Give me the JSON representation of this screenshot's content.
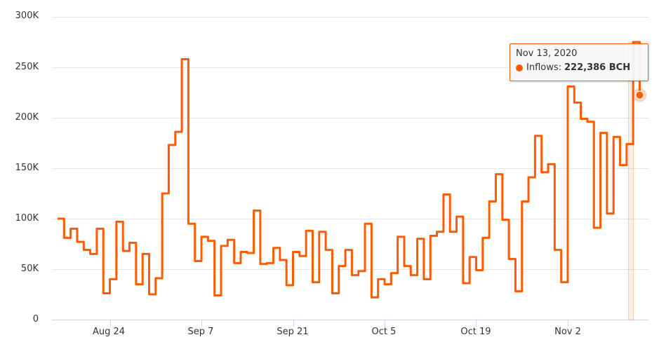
{
  "chart_data": {
    "type": "line",
    "step": true,
    "title": "",
    "xlabel": "",
    "ylabel": "",
    "ylim": [
      0,
      300000
    ],
    "y_ticks": [
      {
        "value": 0,
        "label": "0"
      },
      {
        "value": 50000,
        "label": "50K"
      },
      {
        "value": 100000,
        "label": "100K"
      },
      {
        "value": 150000,
        "label": "150K"
      },
      {
        "value": 200000,
        "label": "200K"
      },
      {
        "value": 250000,
        "label": "250K"
      },
      {
        "value": 300000,
        "label": "300K"
      }
    ],
    "x_ticks": [
      {
        "date": "2020-08-24",
        "label": "Aug 24"
      },
      {
        "date": "2020-09-07",
        "label": "Sep 7"
      },
      {
        "date": "2020-09-21",
        "label": "Sep 21"
      },
      {
        "date": "2020-10-05",
        "label": "Oct 5"
      },
      {
        "date": "2020-10-19",
        "label": "Oct 19"
      },
      {
        "date": "2020-11-02",
        "label": "Nov 2"
      }
    ],
    "grid": true,
    "legend": null,
    "x_start": "2020-08-16",
    "x_end": "2020-11-13",
    "series": [
      {
        "name": "Inflows",
        "color": "#ff5b00",
        "unit": "BCH",
        "values": [
          100000,
          81000,
          90000,
          77000,
          69000,
          65000,
          90000,
          26000,
          40000,
          97000,
          68000,
          76000,
          35000,
          65000,
          25000,
          41000,
          125000,
          173000,
          186000,
          258000,
          95000,
          58000,
          82000,
          78000,
          24000,
          73000,
          79000,
          56000,
          67000,
          66000,
          108000,
          55000,
          56000,
          71000,
          59000,
          34000,
          67000,
          63000,
          88000,
          37000,
          87000,
          69000,
          26000,
          53000,
          69000,
          44000,
          48000,
          95000,
          22000,
          40000,
          35000,
          46000,
          82000,
          53000,
          44000,
          80000,
          40000,
          83000,
          87000,
          124000,
          87000,
          102000,
          36000,
          62000,
          49000,
          81000,
          117000,
          144000,
          99000,
          60000,
          28000,
          117000,
          141000,
          182000,
          146000,
          154000,
          69000,
          37000,
          231000,
          215000,
          199000,
          196000,
          91000,
          185000,
          105000,
          181000,
          153000,
          174000,
          275000,
          222386
        ]
      }
    ],
    "tooltip": {
      "date": "Nov 13, 2020",
      "series": "Inflows",
      "value": 222386,
      "value_label": "222,386 BCH"
    }
  },
  "axis": {
    "y_labels": [
      "300K",
      "250K",
      "200K",
      "150K",
      "100K",
      "50K",
      "0"
    ],
    "x_labels": [
      "Aug 24",
      "Sep 7",
      "Sep 21",
      "Oct 5",
      "Oct 19",
      "Nov 2"
    ]
  },
  "tooltip": {
    "date": "Nov 13, 2020",
    "series_label": "Inflows:",
    "value": "222,386 BCH"
  },
  "colors": {
    "line": "#ff5b00",
    "grid": "#e6e6e6",
    "axis": "#ccd6eb",
    "text": "#333333"
  }
}
